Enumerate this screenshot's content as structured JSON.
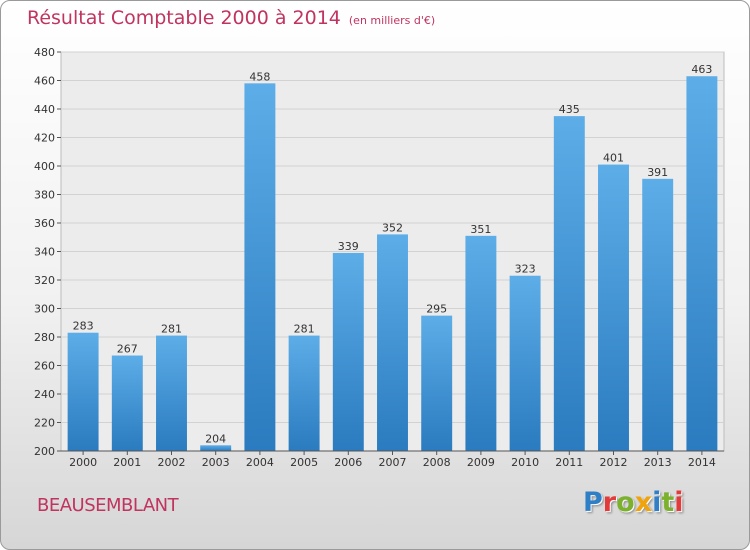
{
  "header": {
    "title": "Résultat Comptable 2000 à 2014",
    "subtitle": "(en milliers d'€)"
  },
  "footer": {
    "commune": "BEAUSEMBLANT",
    "logo_letters": [
      {
        "char": "P",
        "color": "#2e7fc6"
      },
      {
        "char": "r",
        "color": "#e23b3b"
      },
      {
        "char": "o",
        "color": "#7cb12d"
      },
      {
        "char": "x",
        "color": "#f0a30a"
      },
      {
        "char": "i",
        "color": "#2e7fc6"
      },
      {
        "char": "t",
        "color": "#7cb12d"
      },
      {
        "char": "i",
        "color": "#e23b3b"
      }
    ]
  },
  "colors": {
    "bar_top": "#5dade8",
    "bar_bottom": "#2a7bbf",
    "title": "#c0345f"
  },
  "chart_data": {
    "type": "bar",
    "categories": [
      "2000",
      "2001",
      "2002",
      "2003",
      "2004",
      "2005",
      "2006",
      "2007",
      "2008",
      "2009",
      "2010",
      "2011",
      "2012",
      "2013",
      "2014"
    ],
    "values": [
      283,
      267,
      281,
      204,
      458,
      281,
      339,
      352,
      295,
      351,
      323,
      435,
      401,
      391,
      463
    ],
    "title": "Résultat Comptable 2000 à 2014",
    "xlabel": "",
    "ylabel": "",
    "ylim": [
      200,
      480
    ],
    "yticks": [
      200,
      220,
      240,
      260,
      280,
      300,
      320,
      340,
      360,
      380,
      400,
      420,
      440,
      460,
      480
    ],
    "grid": true,
    "legend": "none"
  }
}
